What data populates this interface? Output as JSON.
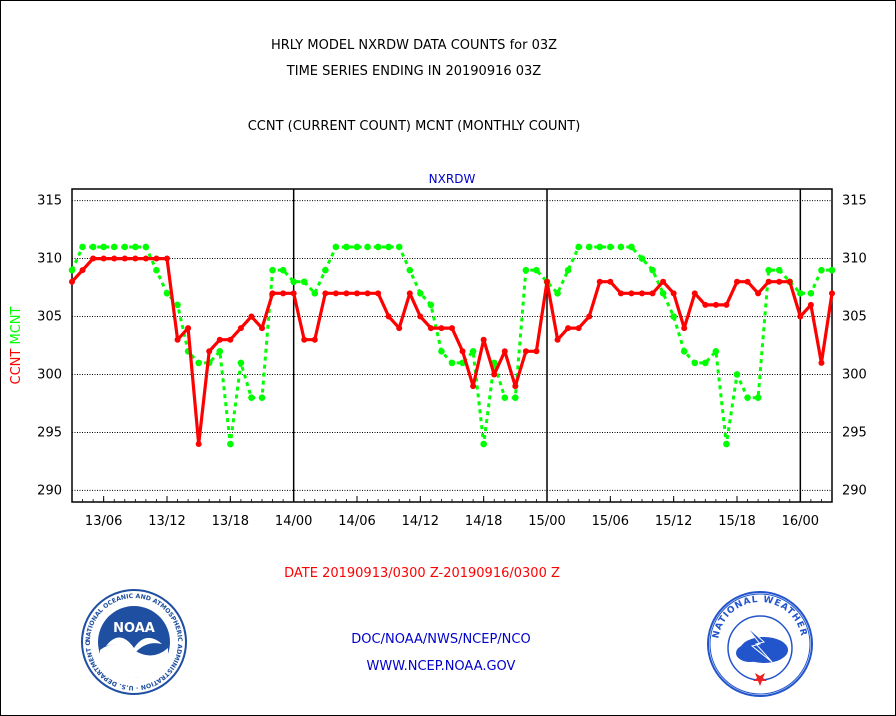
{
  "header": {
    "title_line1": "HRLY MODEL NXRDW DATA COUNTS for 03Z",
    "title_line2": "TIME SERIES ENDING IN 20190916 03Z",
    "subtitle": "CCNT (CURRENT COUNT) MCNT (MONTHLY COUNT)"
  },
  "footer": {
    "date_range": "DATE 20190913/0300 Z-20190916/0300 Z",
    "org": "DOC/NOAA/NWS/NCEP/NCO",
    "url": "WWW.NCEP.NOAA.GOV"
  },
  "logos": {
    "noaa_text": "NOAA",
    "noaa_ring": "NATIONAL OCEANIC AND ATMOSPHERIC ADMINISTRATION · U.S. DEPARTMENT OF COMMERCE ·",
    "nws_ring": "NATIONAL WEATHER SERVICE"
  },
  "colors": {
    "ccnt": "#ff0000",
    "mcnt": "#00ff00",
    "blue_text": "#0000cc",
    "noaa_blue": "#1f4fa0",
    "nws_blue": "#2255cc"
  },
  "chart_data": {
    "type": "line",
    "title": "NXRDW",
    "ylabel_series": [
      "CCNT",
      "MCNT"
    ],
    "xlim": [
      0,
      72
    ],
    "ylim": [
      289,
      316
    ],
    "yticks": [
      290,
      295,
      300,
      305,
      310,
      315
    ],
    "xticks": [
      {
        "x": 3,
        "label": "13/06"
      },
      {
        "x": 9,
        "label": "13/12"
      },
      {
        "x": 15,
        "label": "13/18"
      },
      {
        "x": 21,
        "label": "14/00"
      },
      {
        "x": 27,
        "label": "14/06"
      },
      {
        "x": 33,
        "label": "14/12"
      },
      {
        "x": 39,
        "label": "14/18"
      },
      {
        "x": 45,
        "label": "15/00"
      },
      {
        "x": 51,
        "label": "15/06"
      },
      {
        "x": 57,
        "label": "15/12"
      },
      {
        "x": 63,
        "label": "15/18"
      },
      {
        "x": 69,
        "label": "16/00"
      }
    ],
    "day_boundaries": [
      21,
      45,
      69
    ],
    "grid": "horizontal dashed",
    "series": [
      {
        "name": "CCNT",
        "color": "#ff0000",
        "style": "solid",
        "x": [
          0,
          1,
          2,
          3,
          4,
          5,
          6,
          7,
          8,
          9,
          10,
          11,
          12,
          13,
          14,
          15,
          16,
          17,
          18,
          19,
          20,
          21,
          22,
          23,
          24,
          25,
          26,
          27,
          28,
          29,
          30,
          31,
          32,
          33,
          34,
          35,
          36,
          37,
          38,
          39,
          40,
          41,
          42,
          43,
          44,
          45,
          46,
          47,
          48,
          49,
          50,
          51,
          52,
          53,
          54,
          55,
          56,
          57,
          58,
          59,
          60,
          61,
          62,
          63,
          64,
          65,
          66,
          67,
          68,
          69,
          70,
          71,
          72
        ],
        "values": [
          308,
          309,
          310,
          310,
          310,
          310,
          310,
          310,
          310,
          310,
          303,
          304,
          294,
          302,
          303,
          303,
          304,
          305,
          304,
          307,
          307,
          307,
          303,
          303,
          307,
          307,
          307,
          307,
          307,
          307,
          305,
          304,
          307,
          305,
          304,
          304,
          304,
          302,
          299,
          303,
          300,
          302,
          299,
          302,
          302,
          308,
          303,
          304,
          304,
          305,
          308,
          308,
          307,
          307,
          307,
          307,
          308,
          307,
          304,
          307,
          306,
          306,
          306,
          308,
          308,
          307,
          308,
          308,
          308,
          305,
          306,
          301,
          307
        ]
      },
      {
        "name": "MCNT",
        "color": "#00ff00",
        "style": "dotted",
        "x": [
          0,
          1,
          2,
          3,
          4,
          5,
          6,
          7,
          8,
          9,
          10,
          11,
          12,
          13,
          14,
          15,
          16,
          17,
          18,
          19,
          20,
          21,
          22,
          23,
          24,
          25,
          26,
          27,
          28,
          29,
          30,
          31,
          32,
          33,
          34,
          35,
          36,
          37,
          38,
          39,
          40,
          41,
          42,
          43,
          44,
          45,
          46,
          47,
          48,
          49,
          50,
          51,
          52,
          53,
          54,
          55,
          56,
          57,
          58,
          59,
          60,
          61,
          62,
          63,
          64,
          65,
          66,
          67,
          68,
          69,
          70,
          71,
          72
        ],
        "values": [
          309,
          311,
          311,
          311,
          311,
          311,
          311,
          311,
          309,
          307,
          306,
          302,
          301,
          301,
          302,
          294,
          301,
          298,
          298,
          309,
          309,
          308,
          308,
          307,
          309,
          311,
          311,
          311,
          311,
          311,
          311,
          311,
          309,
          307,
          306,
          302,
          301,
          301,
          302,
          294,
          301,
          298,
          298,
          309,
          309,
          308,
          307,
          309,
          311,
          311,
          311,
          311,
          311,
          311,
          310,
          309,
          307,
          305,
          302,
          301,
          301,
          302,
          294,
          300,
          298,
          298,
          309,
          309,
          308,
          307,
          307,
          309,
          309
        ]
      }
    ]
  }
}
